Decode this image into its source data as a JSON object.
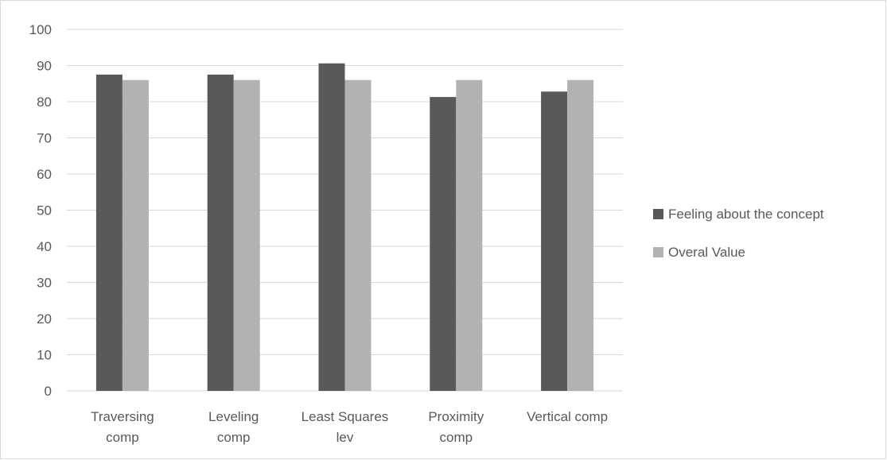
{
  "chart_data": {
    "type": "bar",
    "title": "",
    "xlabel": "",
    "ylabel": "",
    "ylim": [
      0,
      100
    ],
    "ytick_step": 10,
    "grid": true,
    "legend_position": "right",
    "categories": [
      [
        "Traversing",
        "comp"
      ],
      [
        "Leveling",
        "comp"
      ],
      [
        "Least Squares",
        "lev"
      ],
      [
        "Proximity",
        "comp"
      ],
      [
        "Vertical comp"
      ]
    ],
    "series": [
      {
        "name": "Feeling about the concept",
        "color": "#595959",
        "values": [
          87.5,
          87.5,
          90.6,
          81.3,
          82.8
        ]
      },
      {
        "name": "Overal Value",
        "color": "#b2b2b2",
        "values": [
          86,
          86,
          86,
          86,
          86
        ]
      }
    ],
    "colors": {
      "gridline": "#d9d9d9",
      "axis_text": "#595959",
      "border": "#d9d9d9"
    }
  }
}
